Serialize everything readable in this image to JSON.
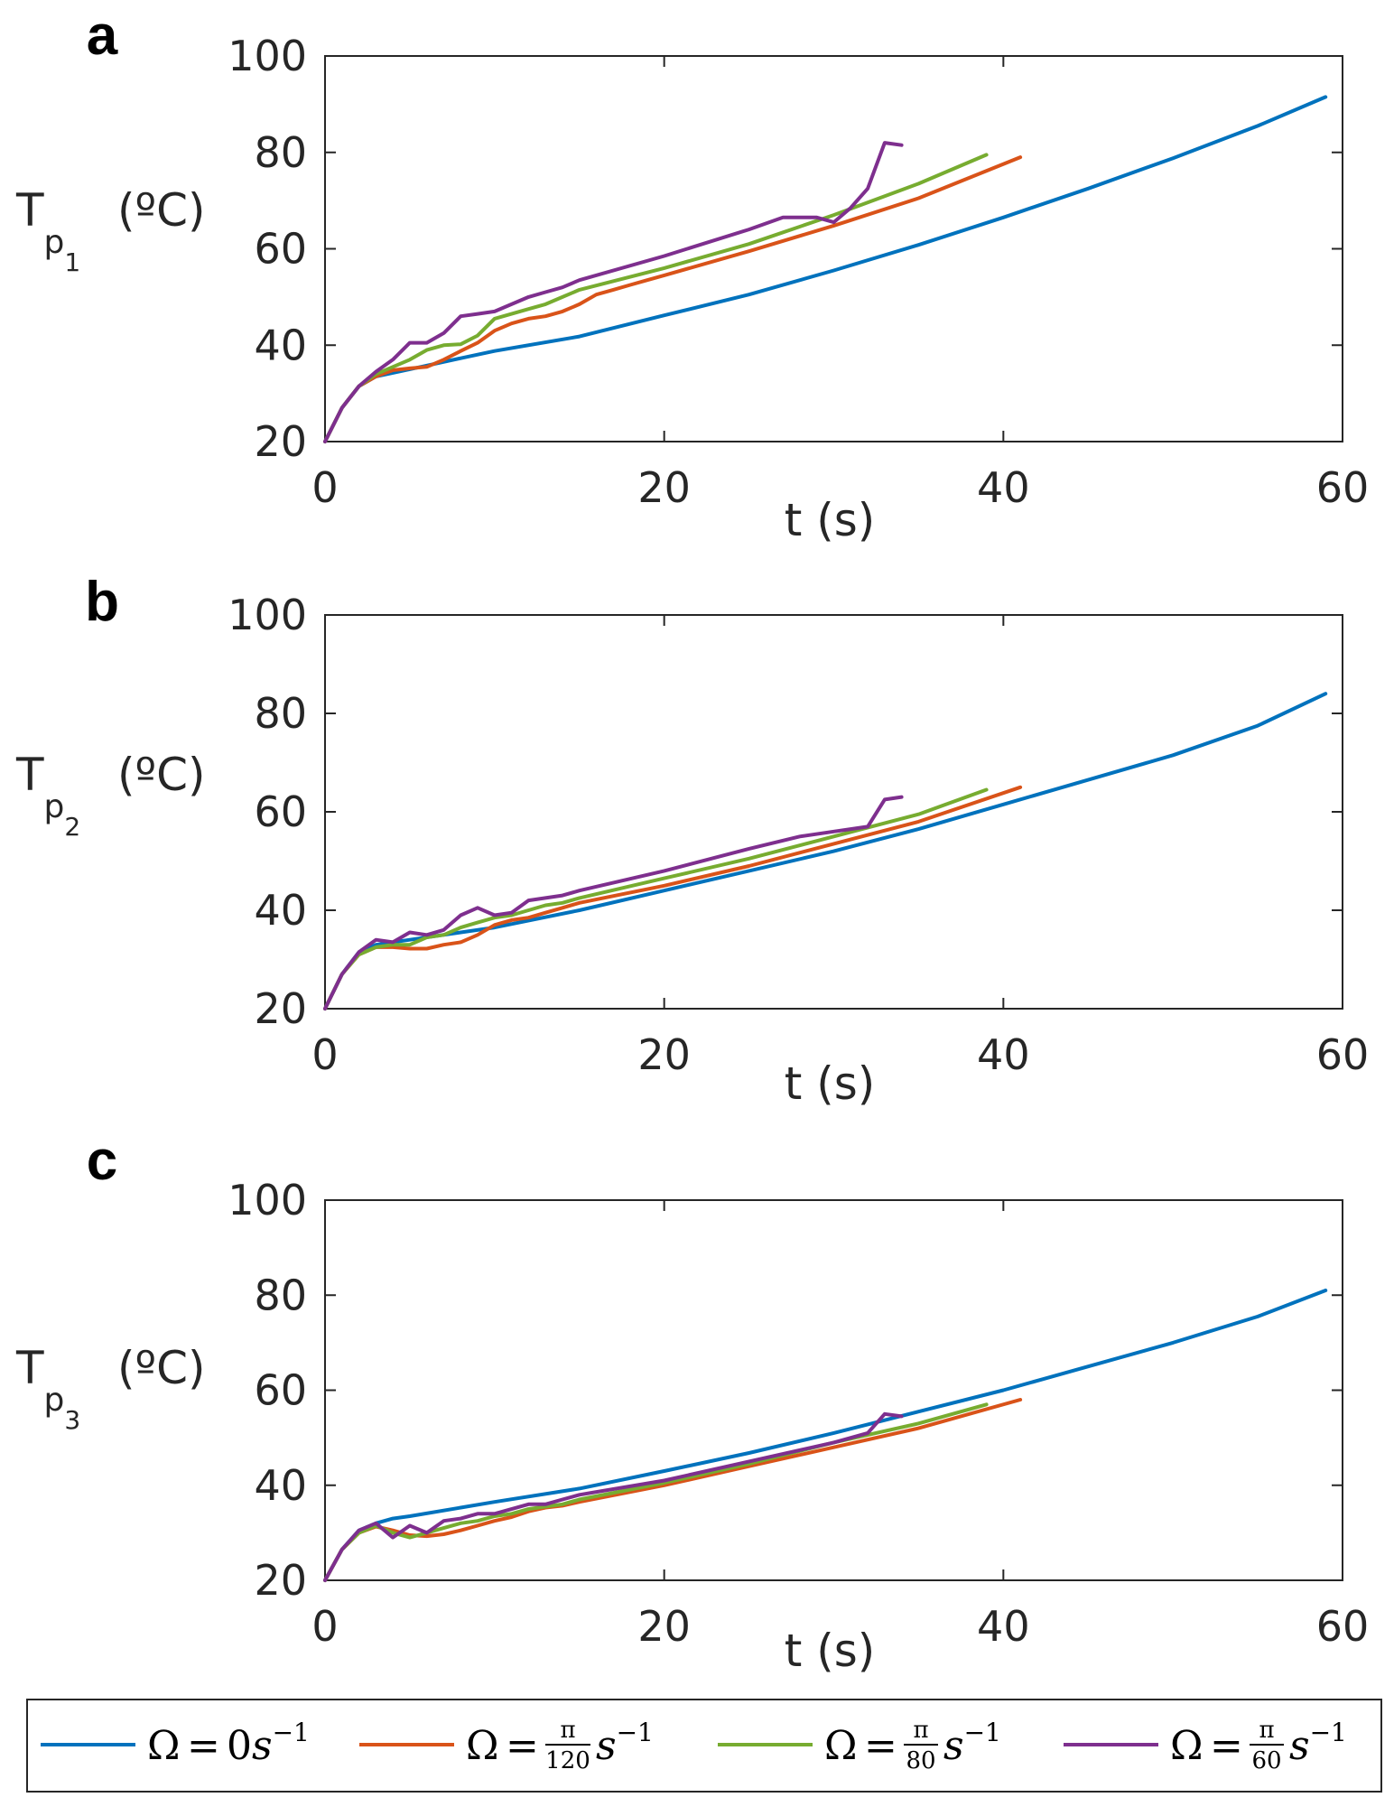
{
  "colors": {
    "omega0": "#0072BD",
    "omega120": "#D95319",
    "omega80": "#77AC30",
    "omega60": "#7E2F8E",
    "axis": "#262626"
  },
  "legend": {
    "omega_symbol": "Ω",
    "equals": "=",
    "pi": "π",
    "unit_base": "s",
    "unit_exp": "−1",
    "items": [
      {
        "key": "omega0",
        "value": "0",
        "den": ""
      },
      {
        "key": "omega120",
        "value": "",
        "den": "120"
      },
      {
        "key": "omega80",
        "value": "",
        "den": "80"
      },
      {
        "key": "omega60",
        "value": "",
        "den": "60"
      }
    ]
  },
  "chart_data": [
    {
      "type": "line",
      "panel_label": "a",
      "ylabel_main": "T",
      "ylabel_sub": "p",
      "ylabel_subsub": "1",
      "ylabel_unit": "(ºC)",
      "xlabel": "t (s)",
      "xlim": [
        0,
        60
      ],
      "ylim": [
        20,
        100
      ],
      "xticks": [
        "0",
        "20",
        "40",
        "60"
      ],
      "yticks": [
        "20",
        "40",
        "60",
        "80",
        "100"
      ],
      "grid": false,
      "series": [
        {
          "key": "omega0",
          "x": [
            0,
            1,
            2,
            3,
            5,
            8,
            10,
            15,
            20,
            25,
            30,
            35,
            40,
            45,
            50,
            55,
            59
          ],
          "y": [
            20,
            27,
            31.5,
            33.5,
            35,
            37.3,
            38.8,
            41.8,
            46.2,
            50.5,
            55.5,
            60.8,
            66.5,
            72.5,
            78.8,
            85.5,
            91.5
          ]
        },
        {
          "key": "omega120",
          "x": [
            0,
            1,
            2,
            3,
            4,
            5,
            6,
            7,
            8,
            9,
            10,
            11,
            12,
            13,
            14,
            15,
            16,
            17,
            18,
            19,
            20,
            25,
            30,
            35,
            41
          ],
          "y": [
            20,
            27,
            31.5,
            33.5,
            34.8,
            35.2,
            35.5,
            37,
            38.8,
            40.5,
            43,
            44.5,
            45.5,
            46,
            47,
            48.5,
            50.5,
            51.5,
            52.5,
            53.5,
            54.5,
            59.5,
            64.8,
            70.5,
            79
          ]
        },
        {
          "key": "omega80",
          "x": [
            0,
            1,
            2,
            3,
            4,
            5,
            6,
            7,
            8,
            9,
            10,
            11,
            12,
            13,
            14,
            15,
            20,
            25,
            30,
            35,
            39
          ],
          "y": [
            20,
            27,
            31.5,
            34,
            35.5,
            37,
            39,
            40,
            40.2,
            42,
            45.5,
            46.5,
            47.5,
            48.5,
            50,
            51.5,
            56,
            61,
            67,
            73.5,
            79.5
          ]
        },
        {
          "key": "omega60",
          "x": [
            0,
            1,
            2,
            3,
            4,
            5,
            6,
            7,
            8,
            9,
            10,
            11,
            12,
            13,
            14,
            15,
            20,
            25,
            27,
            28,
            29,
            30,
            31,
            32,
            33,
            34
          ],
          "y": [
            20,
            27,
            31.5,
            34.5,
            37,
            40.5,
            40.5,
            42.5,
            46,
            46.5,
            47,
            48.5,
            50,
            51,
            52,
            53.5,
            58.5,
            64,
            66.5,
            66.5,
            66.5,
            65.5,
            68.5,
            72.5,
            82,
            81.5
          ]
        }
      ]
    },
    {
      "type": "line",
      "panel_label": "b",
      "ylabel_main": "T",
      "ylabel_sub": "p",
      "ylabel_subsub": "2",
      "ylabel_unit": "(ºC)",
      "xlabel": "t (s)",
      "xlim": [
        0,
        60
      ],
      "ylim": [
        20,
        100
      ],
      "xticks": [
        "0",
        "20",
        "40",
        "60"
      ],
      "yticks": [
        "20",
        "40",
        "60",
        "80",
        "100"
      ],
      "grid": false,
      "series": [
        {
          "key": "omega0",
          "x": [
            0,
            1,
            2,
            3,
            5,
            8,
            10,
            15,
            20,
            25,
            30,
            35,
            40,
            45,
            50,
            55,
            59
          ],
          "y": [
            20,
            27,
            31.5,
            33,
            34,
            35.5,
            36.5,
            40,
            44,
            48,
            52,
            56.5,
            61.5,
            66.5,
            71.5,
            77.5,
            84
          ]
        },
        {
          "key": "omega120",
          "x": [
            0,
            1,
            2,
            3,
            4,
            5,
            6,
            7,
            8,
            9,
            10,
            11,
            12,
            13,
            14,
            15,
            20,
            25,
            30,
            35,
            41
          ],
          "y": [
            20,
            27,
            31,
            32.5,
            32.5,
            32.2,
            32.2,
            33,
            33.5,
            35,
            37,
            38,
            38.5,
            39.5,
            40.5,
            41.5,
            45,
            49,
            53.5,
            58,
            65
          ]
        },
        {
          "key": "omega80",
          "x": [
            0,
            1,
            2,
            3,
            4,
            5,
            6,
            7,
            8,
            9,
            10,
            11,
            12,
            13,
            14,
            15,
            20,
            25,
            30,
            35,
            39
          ],
          "y": [
            20,
            27,
            31,
            32.5,
            33,
            33,
            34.5,
            35,
            36.5,
            37.5,
            38.5,
            39,
            40,
            41,
            41.5,
            42.5,
            46.5,
            50.5,
            55,
            59.5,
            64.5
          ]
        },
        {
          "key": "omega60",
          "x": [
            0,
            1,
            2,
            3,
            4,
            5,
            6,
            7,
            8,
            9,
            10,
            11,
            12,
            13,
            14,
            15,
            20,
            25,
            28,
            30,
            31,
            32,
            33,
            34
          ],
          "y": [
            20,
            27,
            31.5,
            34,
            33.5,
            35.5,
            35,
            36,
            39,
            40.5,
            39,
            39.5,
            42,
            42.5,
            43,
            44,
            48,
            52.5,
            55,
            56,
            56.5,
            57,
            62.5,
            63
          ]
        }
      ]
    },
    {
      "type": "line",
      "panel_label": "c",
      "ylabel_main": "T",
      "ylabel_sub": "p",
      "ylabel_subsub": "3",
      "ylabel_unit": "(ºC)",
      "xlabel": "t (s)",
      "xlim": [
        0,
        60
      ],
      "ylim": [
        20,
        100
      ],
      "xticks": [
        "0",
        "20",
        "40",
        "60"
      ],
      "yticks": [
        "20",
        "40",
        "60",
        "80",
        "100"
      ],
      "grid": false,
      "series": [
        {
          "key": "omega0",
          "x": [
            0,
            1,
            2,
            3,
            4,
            5,
            8,
            10,
            15,
            20,
            25,
            30,
            35,
            40,
            45,
            50,
            55,
            59
          ],
          "y": [
            20,
            26.5,
            30.5,
            32,
            33,
            33.5,
            35.3,
            36.5,
            39.3,
            43,
            46.8,
            51,
            55.5,
            60,
            65,
            70,
            75.5,
            81
          ]
        },
        {
          "key": "omega120",
          "x": [
            0,
            1,
            2,
            3,
            4,
            5,
            6,
            7,
            8,
            9,
            10,
            11,
            12,
            13,
            14,
            15,
            20,
            25,
            30,
            35,
            41
          ],
          "y": [
            20,
            26.5,
            30,
            31.3,
            30.5,
            29.5,
            29.3,
            29.7,
            30.5,
            31.5,
            32.5,
            33.3,
            34.5,
            35.3,
            35.7,
            36.5,
            40,
            44,
            48,
            52,
            58
          ]
        },
        {
          "key": "omega80",
          "x": [
            0,
            1,
            2,
            3,
            4,
            5,
            6,
            7,
            8,
            9,
            10,
            11,
            12,
            13,
            14,
            15,
            20,
            25,
            30,
            35,
            39
          ],
          "y": [
            20,
            26.5,
            30,
            31.5,
            30,
            29,
            30,
            31,
            32,
            32.5,
            33.5,
            34,
            35,
            35.5,
            36,
            37,
            40.5,
            44.5,
            49,
            53,
            57
          ]
        },
        {
          "key": "omega60",
          "x": [
            0,
            1,
            2,
            3,
            4,
            5,
            6,
            7,
            8,
            9,
            10,
            11,
            12,
            13,
            14,
            15,
            20,
            25,
            30,
            32,
            33,
            34
          ],
          "y": [
            20,
            26.5,
            30.5,
            32,
            29,
            31.5,
            30,
            32.5,
            33,
            34,
            34,
            35,
            36,
            36,
            37,
            38,
            41,
            45,
            49,
            51,
            55,
            54.5
          ]
        }
      ]
    }
  ]
}
